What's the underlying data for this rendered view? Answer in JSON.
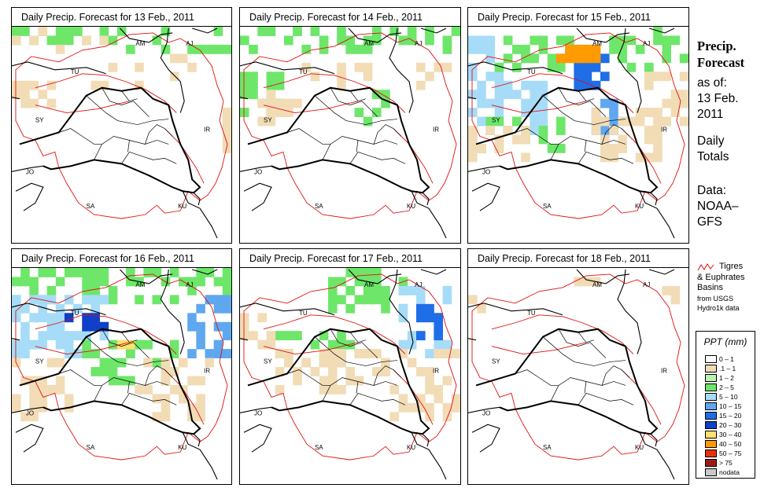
{
  "panels": [
    {
      "title": "Daily Precip. Forecast for  13 Feb., 2011",
      "day": 13
    },
    {
      "title": "Daily Precip. Forecast for  14 Feb., 2011",
      "day": 14
    },
    {
      "title": "Daily Precip. Forecast for  15 Feb., 2011",
      "day": 15
    },
    {
      "title": "Daily Precip. Forecast for  16 Feb., 2011",
      "day": 16
    },
    {
      "title": "Daily Precip. Forecast for  17 Feb., 2011",
      "day": 17
    },
    {
      "title": "Daily Precip. Forecast for  18 Feb., 2011",
      "day": 18
    }
  ],
  "country_labels": [
    "AM",
    "AJ",
    "TU",
    "SY",
    "IR",
    "JO",
    "SA",
    "KU"
  ],
  "sidebar": {
    "title_line1": "Precip.",
    "title_line2": "Forecast",
    "asof_label": "as of:",
    "asof_date1": "13 Feb.",
    "asof_date2": "2011",
    "totals_line1": "Daily",
    "totals_line2": "Totals",
    "data_line1": "Data:",
    "data_line2": "NOAA–",
    "data_line3": "GFS"
  },
  "basin_legend": {
    "line1": "Tigres",
    "line2": "& Euphrates",
    "line3": "Basins",
    "line4": "from USGS",
    "line5": "Hydro1k data",
    "line_color": "#e01010"
  },
  "legend": {
    "title": "PPT (mm)",
    "items": [
      {
        "label": "0 – 1",
        "color": "#ffffff"
      },
      {
        "label": ".1 – 1",
        "color": "#f2dcb6"
      },
      {
        "label": "1 – 2",
        "color": "#b8f5b0"
      },
      {
        "label": "2 – 5",
        "color": "#6ee66a"
      },
      {
        "label": "5 – 10",
        "color": "#a6dcf8"
      },
      {
        "label": "10 – 15",
        "color": "#5fa8f0"
      },
      {
        "label": "15 – 20",
        "color": "#1f6ee8"
      },
      {
        "label": "20 – 30",
        "color": "#1040c8"
      },
      {
        "label": "30 – 40",
        "color": "#ffe070"
      },
      {
        "label": "40 – 50",
        "color": "#ff9a00"
      },
      {
        "label": "50 – 75",
        "color": "#e83010"
      },
      {
        "label": "> 75",
        "color": "#a01818"
      },
      {
        "label": "nodata",
        "color": "#c8c8c8"
      }
    ]
  }
}
